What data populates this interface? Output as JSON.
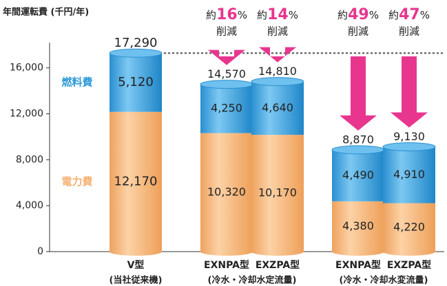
{
  "chart_data": {
    "type": "stacked_bar",
    "y_axis_label": "年間運転費 (千円/年)",
    "categories": [
      "V型",
      "EXNPA型",
      "EXZPA型",
      "EXNPA型",
      "EXZPA型"
    ],
    "groups": [
      {
        "label": "(当社従来機)",
        "members": [
          0
        ]
      },
      {
        "label": "(冷水・冷却水定流量)",
        "members": [
          1,
          2
        ]
      },
      {
        "label": "(冷水・冷却水変流量)",
        "members": [
          3,
          4
        ]
      }
    ],
    "series": [
      {
        "name": "電力費",
        "color": "#f5b273",
        "values": [
          12170,
          10320,
          10170,
          4380,
          4220
        ],
        "value_labels": [
          "12,170",
          "10,320",
          "10,170",
          "4,380",
          "4,220"
        ]
      },
      {
        "name": "燃料費",
        "color": "#2d9ad9",
        "values": [
          5120,
          4250,
          4640,
          4490,
          4910
        ],
        "value_labels": [
          "5,120",
          "4,250",
          "4,640",
          "4,490",
          "4,910"
        ]
      }
    ],
    "totals": [
      17290,
      14570,
      14810,
      8870,
      9130
    ],
    "total_labels": [
      "17,290",
      "14,570",
      "14,810",
      "8,870",
      "9,130"
    ],
    "annotations": [
      {
        "bar": 1,
        "prefix": "約",
        "value": 16,
        "unit": "%",
        "text": "削減"
      },
      {
        "bar": 2,
        "prefix": "約",
        "value": 14,
        "unit": "%",
        "text": "削減"
      },
      {
        "bar": 3,
        "prefix": "約",
        "value": 49,
        "unit": "%",
        "text": "削減"
      },
      {
        "bar": 4,
        "prefix": "約",
        "value": 47,
        "unit": "%",
        "text": "削減"
      }
    ],
    "arrow_color": "#e8368f",
    "ylim": [
      0,
      18200
    ],
    "yticks": [
      0,
      {
        "value": 4000,
        "label": "4,000"
      },
      {
        "value": 8000,
        "label": "8,000"
      },
      {
        "value": 12000,
        "label": "12,000"
      },
      {
        "value": 16000,
        "label": "16,000"
      }
    ]
  }
}
